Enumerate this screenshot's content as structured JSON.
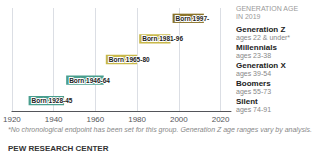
{
  "chart_data": {
    "type": "bar",
    "orientation": "horizontal",
    "title": "GENERATION AGE\nIN 2019",
    "categories": [
      "Silent",
      "Boomers",
      "Generation X",
      "Millennials",
      "Generation Z"
    ],
    "start": [
      1928,
      1946,
      1965,
      1981,
      1997
    ],
    "end": [
      1945,
      1964,
      1980,
      1996,
      2012
    ],
    "colors": [
      "#4a9e8e",
      "#4a9e8e",
      "#c8b84a",
      "#c8b84a",
      "#8b7328"
    ],
    "bar_labels": [
      "Born 1928-45",
      "Born 1946-64",
      "Born 1965-80",
      "Born 1981-96",
      "Born 1997-"
    ],
    "ages": [
      "ages 74-91",
      "ages 55-73",
      "ages 39-54",
      "ages 23-38",
      "ages 22 & under*"
    ],
    "xlim": [
      1920,
      2025
    ],
    "xticks": [
      1920,
      1940,
      1960,
      1980,
      2000,
      2020
    ],
    "grid": true,
    "tick_labels": "x",
    "footnote": "*No chronological endpoint has been set for this group. Generation Z age ranges vary by analysis.",
    "source": "PEW RESEARCH CENTER"
  }
}
